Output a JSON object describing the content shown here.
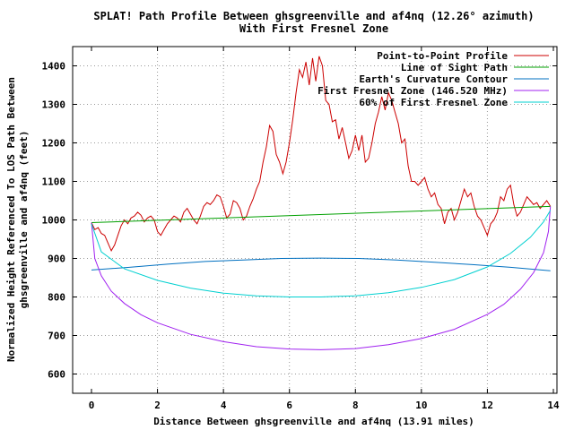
{
  "chart_data": {
    "type": "line",
    "title": "SPLAT! Path Profile Between ghsgreenville and af4nq (12.26° azimuth)",
    "subtitle": "With First Fresnel Zone",
    "xlabel": "Distance Between ghsgreenville and af4nq (13.91 miles)",
    "ylabel": [
      "Normalized Height Referenced To LOS Path Between",
      "ghsgreenville and af4nq (feet)"
    ],
    "xlim": [
      -0.6,
      14
    ],
    "ylim": [
      550,
      1450
    ],
    "x_ticks": [
      0,
      2,
      4,
      6,
      8,
      10,
      12,
      14
    ],
    "y_ticks": [
      600,
      700,
      800,
      900,
      1000,
      1100,
      1200,
      1300,
      1400
    ],
    "grid": true,
    "legend_position": "top-right",
    "series": [
      {
        "name": "Point-to-Point Profile",
        "color": "#cc0000",
        "x": [
          0,
          0.1,
          0.2,
          0.3,
          0.4,
          0.5,
          0.6,
          0.7,
          0.8,
          0.9,
          1.0,
          1.1,
          1.2,
          1.3,
          1.4,
          1.5,
          1.6,
          1.7,
          1.8,
          1.9,
          2.0,
          2.1,
          2.2,
          2.3,
          2.4,
          2.5,
          2.6,
          2.7,
          2.8,
          2.9,
          3.0,
          3.1,
          3.2,
          3.3,
          3.4,
          3.5,
          3.6,
          3.7,
          3.8,
          3.9,
          4.0,
          4.1,
          4.2,
          4.3,
          4.4,
          4.5,
          4.6,
          4.7,
          4.8,
          4.9,
          5.0,
          5.1,
          5.2,
          5.3,
          5.4,
          5.5,
          5.6,
          5.7,
          5.8,
          5.9,
          6.0,
          6.1,
          6.2,
          6.3,
          6.4,
          6.5,
          6.6,
          6.7,
          6.8,
          6.9,
          7.0,
          7.1,
          7.2,
          7.3,
          7.4,
          7.5,
          7.6,
          7.7,
          7.8,
          7.9,
          8.0,
          8.1,
          8.2,
          8.3,
          8.4,
          8.5,
          8.6,
          8.7,
          8.8,
          8.9,
          9.0,
          9.1,
          9.2,
          9.3,
          9.4,
          9.5,
          9.6,
          9.7,
          9.8,
          9.9,
          10.0,
          10.1,
          10.2,
          10.3,
          10.4,
          10.5,
          10.6,
          10.7,
          10.8,
          10.9,
          11.0,
          11.1,
          11.2,
          11.3,
          11.4,
          11.5,
          11.6,
          11.7,
          11.8,
          11.9,
          12.0,
          12.1,
          12.2,
          12.3,
          12.4,
          12.5,
          12.6,
          12.7,
          12.8,
          12.9,
          13.0,
          13.1,
          13.2,
          13.3,
          13.4,
          13.5,
          13.6,
          13.7,
          13.8,
          13.91
        ],
        "values": [
          993,
          975,
          980,
          965,
          960,
          940,
          920,
          935,
          960,
          985,
          1000,
          990,
          1005,
          1010,
          1020,
          1012,
          995,
          1005,
          1010,
          1000,
          970,
          960,
          975,
          990,
          1000,
          1010,
          1005,
          995,
          1020,
          1030,
          1015,
          1000,
          990,
          1010,
          1035,
          1045,
          1040,
          1050,
          1065,
          1060,
          1035,
          1005,
          1015,
          1050,
          1045,
          1030,
          1000,
          1010,
          1035,
          1055,
          1080,
          1100,
          1150,
          1190,
          1245,
          1230,
          1170,
          1150,
          1120,
          1150,
          1200,
          1260,
          1330,
          1390,
          1370,
          1410,
          1350,
          1420,
          1360,
          1425,
          1400,
          1310,
          1300,
          1255,
          1260,
          1210,
          1240,
          1200,
          1160,
          1180,
          1220,
          1180,
          1220,
          1150,
          1160,
          1200,
          1250,
          1280,
          1320,
          1285,
          1330,
          1310,
          1280,
          1250,
          1200,
          1210,
          1140,
          1100,
          1100,
          1090,
          1100,
          1110,
          1080,
          1060,
          1070,
          1040,
          1030,
          990,
          1020,
          1030,
          1000,
          1020,
          1050,
          1080,
          1060,
          1070,
          1035,
          1010,
          1000,
          980,
          960,
          990,
          1000,
          1020,
          1060,
          1050,
          1080,
          1090,
          1040,
          1010,
          1020,
          1040,
          1060,
          1050,
          1040,
          1045,
          1030,
          1040,
          1050,
          1035
        ]
      },
      {
        "name": "Line of Sight Path",
        "color": "#00a000",
        "x": [
          0,
          13.91
        ],
        "values": [
          993,
          1035
        ]
      },
      {
        "name": "Earth's Curvature Contour",
        "color": "#0070c0",
        "x": [
          0,
          1.15,
          2.3,
          3.45,
          4.6,
          5.75,
          6.95,
          8.1,
          9.25,
          10.4,
          11.55,
          12.7,
          13.91
        ],
        "values": [
          870,
          877,
          885,
          892,
          896,
          900,
          901,
          900,
          896,
          890,
          884,
          877,
          868
        ]
      },
      {
        "name": "First Fresnel Zone (146.520 MHz)",
        "color": "#a020f0",
        "x": [
          0,
          0.1,
          0.3,
          0.6,
          1.0,
          1.5,
          2.0,
          3.0,
          4.0,
          5.0,
          6.0,
          6.95,
          8.0,
          9.0,
          10.0,
          11.0,
          12.0,
          12.5,
          13.0,
          13.4,
          13.7,
          13.85,
          13.91
        ],
        "values": [
          993,
          900,
          855,
          815,
          783,
          754,
          733,
          703,
          684,
          671,
          665,
          663,
          666,
          676,
          692,
          716,
          755,
          781,
          820,
          863,
          915,
          970,
          1035
        ]
      },
      {
        "name": "60% of First Fresnel Zone",
        "color": "#00d0d0",
        "x": [
          0,
          0.3,
          1.0,
          2.0,
          3.0,
          4.0,
          5.0,
          6.0,
          6.95,
          8.0,
          9.0,
          10.0,
          11.0,
          12.0,
          12.7,
          13.3,
          13.7,
          13.91
        ],
        "values": [
          990,
          917,
          873,
          843,
          823,
          810,
          803,
          800,
          800,
          803,
          811,
          825,
          845,
          878,
          913,
          955,
          995,
          1025
        ]
      }
    ]
  }
}
